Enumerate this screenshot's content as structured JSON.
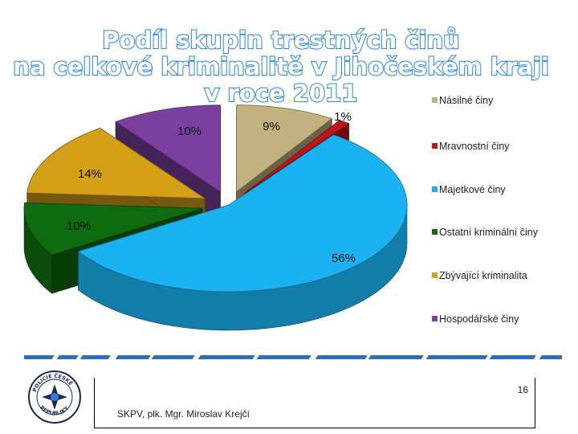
{
  "title_lines": [
    "Podíl skupin trestných činů",
    "na celkové kriminalitě v Jihočeském kraji",
    "v roce 2011"
  ],
  "chart_data": {
    "type": "pie",
    "title": "Podíl skupin trestných činů na celkové kriminalitě v Jihočeském kraji v roce 2011",
    "legend_position": "right",
    "slices": [
      {
        "label": "Násilné činy",
        "value": 9,
        "display": "9%",
        "color": "#c2b280"
      },
      {
        "label": "Mravnostní činy",
        "value": 1,
        "display": "1%",
        "color": "#c0141c"
      },
      {
        "label": "Majetkové činy",
        "value": 56,
        "display": "56%",
        "color": "#1ab2f0"
      },
      {
        "label": "Ostatní kriminální činy",
        "value": 10,
        "display": "10%",
        "color": "#0f6b0f"
      },
      {
        "label": "Zbývající kriminalita",
        "value": 14,
        "display": "14%",
        "color": "#d4a017"
      },
      {
        "label": "Hospodářské činy",
        "value": 10,
        "display": "10%",
        "color": "#7b3fa0"
      }
    ]
  },
  "footer": {
    "page_number": "16",
    "author": "SKPV, plk. Mgr. Miroslav Krejčí",
    "logo_text": "POLICIE ČESKÉ REPUBLIKY"
  }
}
